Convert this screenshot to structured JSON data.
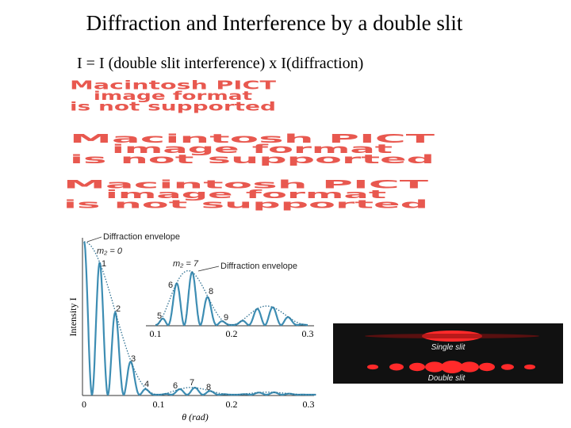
{
  "title": "Diffraction and Interference by a double slit",
  "subtitle": "I = I (double slit interference) x I(diffraction)",
  "placeholders": [
    [
      "Macintosh PICT",
      "image format",
      "is not supported"
    ],
    [
      "Macintosh PICT",
      "image format",
      "is not supported"
    ],
    [
      "Macintosh PICT",
      "image format",
      "is not supported"
    ]
  ],
  "figure": {
    "y_label": "Intensity I",
    "x_label": "θ (rad)",
    "x_ticks": [
      "0",
      "0.1",
      "0.2",
      "0.3"
    ],
    "envelope_label": "Diffraction envelope",
    "order_zero": "m₂ = 0",
    "orders": [
      "1",
      "2",
      "3",
      "4",
      "6",
      "7",
      "8"
    ],
    "inset": {
      "envelope_label": "Diffraction envelope",
      "order_label": "m₂ = 7",
      "orders": [
        "5",
        "6",
        "8",
        "9"
      ],
      "x_ticks": [
        "0.1",
        "0.2",
        "0.3"
      ]
    }
  },
  "photo": {
    "top_label": "Single slit",
    "bottom_label": "Double slit"
  }
}
